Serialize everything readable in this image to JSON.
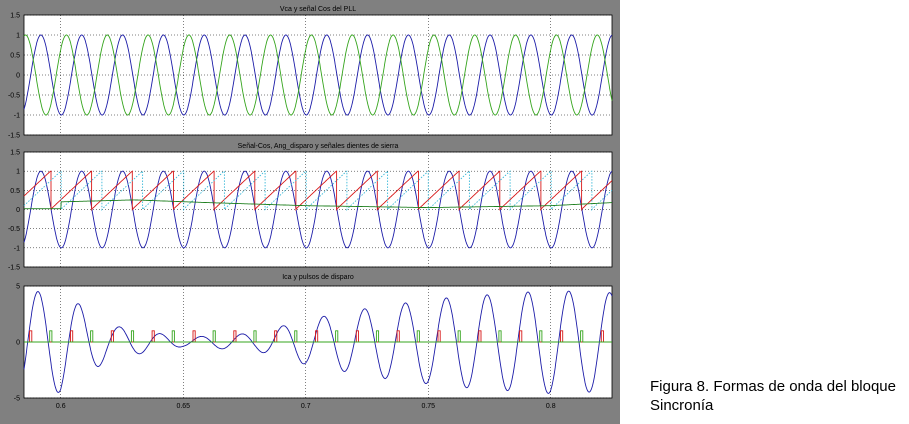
{
  "caption": {
    "line1": "Figura 8. Formas de onda del bloque",
    "line2": "Sincronía"
  },
  "chart_data": [
    {
      "type": "line",
      "title": "Vca y señal Cos del PLL",
      "ylim": [
        -1.5,
        1.5
      ],
      "yticks": [
        "1.5",
        "1",
        "0.5",
        "0",
        "-0.5",
        "-1",
        "-1.5"
      ],
      "xlim": [
        0.585,
        0.825
      ],
      "grid": true,
      "series": [
        {
          "color": "#1c1ca8",
          "kind": "sine",
          "amplitude": 1,
          "frequency_hz": 60,
          "phase_deg": -95
        },
        {
          "color": "#34a41c",
          "kind": "sine",
          "amplitude": 1,
          "frequency_hz": 60,
          "phase_deg": 40
        }
      ]
    },
    {
      "type": "line",
      "title": "Señal-Cos, Ang_disparo y señales dientes de sierra",
      "ylim": [
        -1.5,
        1.5
      ],
      "yticks": [
        "1.5",
        "1",
        "0.5",
        "0",
        "-0.5",
        "-1",
        "-1.5"
      ],
      "xlim": [
        0.585,
        0.825
      ],
      "grid": true,
      "series": [
        {
          "color": "#1c1ca8",
          "kind": "sine",
          "amplitude": 1,
          "frequency_hz": 60,
          "phase_deg": -95
        },
        {
          "color": "#d81818",
          "kind": "sawtooth",
          "min": 0,
          "max": 1,
          "frequency_hz": 60
        },
        {
          "color": "#38b8d8",
          "kind": "sawtooth_dotted",
          "min": 0,
          "max": 1,
          "frequency_hz": 60
        },
        {
          "color": "#208020",
          "kind": "ramp",
          "points": [
            [
              0.585,
              0.02
            ],
            [
              0.6,
              0.02
            ],
            [
              0.6,
              0.2
            ],
            [
              0.63,
              0.25
            ],
            [
              0.66,
              0.18
            ],
            [
              0.7,
              0.1
            ],
            [
              0.75,
              0.05
            ],
            [
              0.8,
              0.1
            ],
            [
              0.825,
              0.18
            ]
          ]
        }
      ]
    },
    {
      "type": "line",
      "title": "Ica y pulsos de disparo",
      "ylim": [
        -5,
        5
      ],
      "yticks": [
        "5",
        "0",
        "-5"
      ],
      "xlim": [
        0.585,
        0.825
      ],
      "xticks": [
        "0.6",
        "0.65",
        "0.7",
        "0.75",
        "0.8"
      ],
      "xtick_values": [
        0.6,
        0.65,
        0.7,
        0.75,
        0.8
      ],
      "grid": true,
      "series": [
        {
          "color": "#1c1ca8",
          "kind": "damped_then_growing_sine",
          "frequency_hz": 60,
          "envelope": [
            [
              0.585,
              4.5
            ],
            [
              0.6,
              4.5
            ],
            [
              0.62,
              1.5
            ],
            [
              0.65,
              0.4
            ],
            [
              0.68,
              0.8
            ],
            [
              0.7,
              2.0
            ],
            [
              0.73,
              3.2
            ],
            [
              0.76,
              4.0
            ],
            [
              0.8,
              4.6
            ],
            [
              0.825,
              4.4
            ]
          ]
        },
        {
          "color": "#d81818",
          "kind": "pulses",
          "height": 1,
          "frequency_hz": 60
        },
        {
          "color": "#34a41c",
          "kind": "pulses",
          "height": 1,
          "frequency_hz": 60
        }
      ]
    }
  ]
}
